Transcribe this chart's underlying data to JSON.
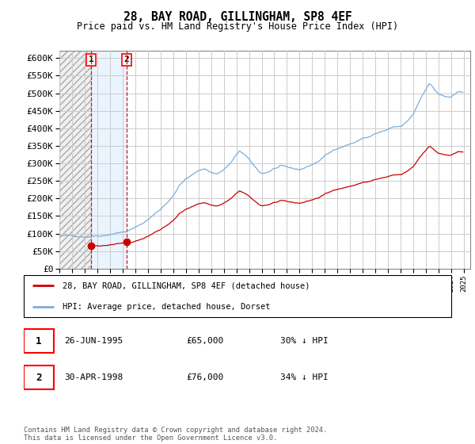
{
  "title": "28, BAY ROAD, GILLINGHAM, SP8 4EF",
  "subtitle": "Price paid vs. HM Land Registry's House Price Index (HPI)",
  "ytick_values": [
    0,
    50000,
    100000,
    150000,
    200000,
    250000,
    300000,
    350000,
    400000,
    450000,
    500000,
    550000,
    600000
  ],
  "sale1_date": 1995.5,
  "sale1_price": 65000,
  "sale2_date": 1998.33,
  "sale2_price": 76000,
  "sale1_label": "1",
  "sale2_label": "2",
  "legend_line1": "28, BAY ROAD, GILLINGHAM, SP8 4EF (detached house)",
  "legend_line2": "HPI: Average price, detached house, Dorset",
  "table_row1": [
    "1",
    "26-JUN-1995",
    "£65,000",
    "30% ↓ HPI"
  ],
  "table_row2": [
    "2",
    "30-APR-1998",
    "£76,000",
    "34% ↓ HPI"
  ],
  "footer": "Contains HM Land Registry data © Crown copyright and database right 2024.\nThis data is licensed under the Open Government Licence v3.0.",
  "hpi_color": "#7aaddc",
  "sale_color": "#cc0000",
  "grid_color": "#cccccc",
  "xmin": 1993,
  "xmax": 2025.5,
  "ymax": 620000,
  "hpi_at_sale1": 93000,
  "hpi_at_sale2": 115000
}
